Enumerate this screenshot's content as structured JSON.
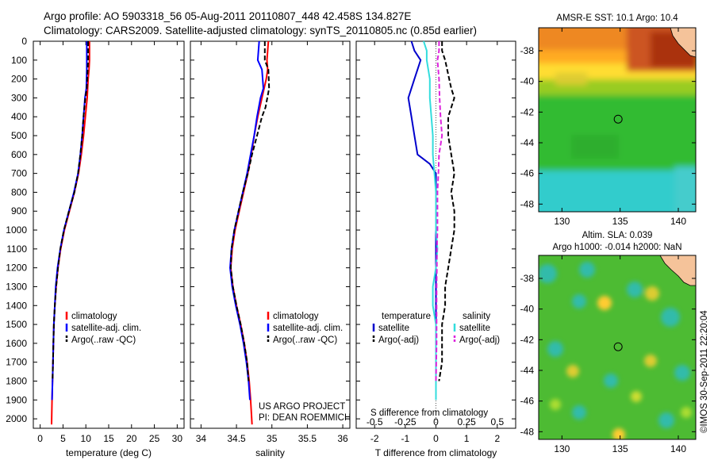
{
  "header": {
    "title_line1": "Argo profile: AO 5903318_56 05-Aug-2011 20110807_448 42.458S 134.827E",
    "title_line2": "Climatology: CARS2009. Satellite-adjusted climatology: synTS_20110805.nc (0.85d earlier)"
  },
  "watermark": "©IMOS 30-Sep-2011 22:20:04",
  "chart_data": [
    {
      "type": "line",
      "id": "temperature",
      "xlabel": "temperature (deg C)",
      "ylabel": "",
      "xlim": [
        -1.5,
        31.5
      ],
      "ylim": [
        2050,
        0
      ],
      "xticks": [
        0,
        5,
        10,
        15,
        20,
        25,
        30
      ],
      "yticks": [
        0,
        100,
        200,
        300,
        400,
        500,
        600,
        700,
        800,
        900,
        1000,
        1100,
        1200,
        1300,
        1400,
        1500,
        1600,
        1700,
        1800,
        1900,
        2000
      ],
      "legend": [
        "climatology",
        "satellite-adj. clim.",
        "Argo(..raw -QC)"
      ],
      "legend_position": "lower-right",
      "series": [
        {
          "name": "climatology",
          "color": "#ff0000",
          "dash": "solid",
          "x": [
            10.8,
            10.8,
            10.7,
            10.5,
            10.3,
            9.9,
            9.5,
            9.0,
            8.4,
            7.5,
            6.4,
            5.3,
            4.5,
            3.9,
            3.5,
            3.2,
            3.0,
            2.9,
            2.8,
            2.7,
            2.6,
            2.5
          ],
          "y": [
            0,
            100,
            150,
            200,
            300,
            400,
            500,
            600,
            700,
            800,
            900,
            1000,
            1100,
            1200,
            1300,
            1400,
            1500,
            1600,
            1700,
            1800,
            1900,
            2030
          ]
        },
        {
          "name": "satellite-adj. clim.",
          "color": "#0000ff",
          "dash": "solid",
          "x": [
            10.2,
            10.2,
            10.2,
            10.1,
            9.8,
            9.5,
            9.2,
            8.8,
            8.3,
            7.4,
            6.3,
            5.2,
            4.4,
            3.8,
            3.4,
            3.2,
            3.0,
            2.9,
            2.8,
            2.7,
            2.6
          ],
          "y": [
            0,
            100,
            150,
            250,
            300,
            400,
            500,
            600,
            700,
            800,
            900,
            1000,
            1100,
            1200,
            1300,
            1400,
            1500,
            1600,
            1700,
            1800,
            1900
          ]
        },
        {
          "name": "Argo(..raw -QC)",
          "color": "#000000",
          "dash": "dashed",
          "x": [
            10.5,
            10.5,
            10.4,
            10.2,
            9.9,
            9.5,
            9.2,
            8.8,
            8.3,
            7.5,
            6.3,
            5.2,
            4.4,
            3.9,
            3.5,
            3.2,
            3.0,
            2.9,
            2.8,
            2.7
          ],
          "y": [
            0,
            100,
            150,
            250,
            300,
            400,
            500,
            600,
            700,
            800,
            900,
            1000,
            1100,
            1200,
            1300,
            1400,
            1500,
            1600,
            1700,
            1800
          ]
        }
      ]
    },
    {
      "type": "line",
      "id": "salinity",
      "xlabel": "salinity",
      "ylabel": "",
      "xlim": [
        33.85,
        36.1
      ],
      "ylim": [
        2050,
        0
      ],
      "xticks": [
        34,
        34.5,
        35,
        35.5,
        36
      ],
      "legend": [
        "climatology",
        "satellite-adj. clim.",
        "Argo(..raw -QC)"
      ],
      "legend_position": "lower-right",
      "annotation": [
        "US ARGO PROJECT",
        "PI: DEAN ROEMMICH"
      ],
      "series": [
        {
          "name": "climatology",
          "color": "#ff0000",
          "dash": "solid",
          "x": [
            34.95,
            34.93,
            34.94,
            34.92,
            34.86,
            34.8,
            34.75,
            34.71,
            34.66,
            34.6,
            34.54,
            34.48,
            34.44,
            34.42,
            34.45,
            34.5,
            34.56,
            34.61,
            34.65,
            34.68,
            34.7,
            34.72
          ],
          "y": [
            0,
            100,
            150,
            200,
            300,
            400,
            500,
            600,
            700,
            800,
            900,
            1000,
            1100,
            1200,
            1300,
            1400,
            1500,
            1600,
            1700,
            1800,
            1900,
            2030
          ]
        },
        {
          "name": "satellite-adj. clim.",
          "color": "#0000ff",
          "dash": "solid",
          "x": [
            34.82,
            34.8,
            34.86,
            34.88,
            34.84,
            34.79,
            34.75,
            34.7,
            34.65,
            34.59,
            34.53,
            34.47,
            34.43,
            34.41,
            34.44,
            34.49,
            34.55,
            34.6,
            34.64,
            34.67,
            34.69
          ],
          "y": [
            0,
            100,
            150,
            250,
            300,
            400,
            500,
            600,
            700,
            800,
            900,
            1000,
            1100,
            1200,
            1300,
            1400,
            1500,
            1600,
            1700,
            1800,
            1900
          ]
        },
        {
          "name": "Argo(..raw -QC)",
          "color": "#000000",
          "dash": "dashed",
          "x": [
            34.9,
            34.9,
            34.95,
            34.96,
            34.91,
            34.86,
            34.79,
            34.72,
            34.66,
            34.59,
            34.53,
            34.47,
            34.43,
            34.42,
            34.45,
            34.5,
            34.56,
            34.61,
            34.65,
            34.67
          ],
          "y": [
            0,
            100,
            150,
            250,
            350,
            400,
            500,
            600,
            700,
            800,
            900,
            1000,
            1100,
            1200,
            1300,
            1400,
            1500,
            1600,
            1700,
            1800
          ]
        }
      ]
    },
    {
      "type": "line",
      "id": "difference",
      "xlabel": "T difference from climatology",
      "xlabel_top": "S difference from climatology",
      "ylabel": "",
      "xlim": [
        -2.6,
        2.6
      ],
      "ylim": [
        2050,
        0
      ],
      "xticks": [
        -2,
        -1,
        0,
        1,
        2
      ],
      "xticks_top": [
        -0.5,
        -0.25,
        0,
        0.25,
        0.5
      ],
      "legend_temperature_heading": "temperature",
      "legend_salinity_heading": "salinity",
      "legend_position": "lower-center",
      "series": [
        {
          "name": "satellite",
          "group": "temperature",
          "color": "#0000cc",
          "dash": "solid",
          "x": [
            -0.8,
            -0.7,
            -0.5,
            -0.7,
            -0.9,
            -0.8,
            -0.7,
            -0.6,
            -0.2,
            0.0,
            0.0,
            0.0,
            0.0,
            0.0,
            0.0,
            0.0,
            0.0,
            0.0,
            0.0,
            0.0
          ],
          "y": [
            0,
            50,
            100,
            200,
            300,
            400,
            500,
            600,
            650,
            700,
            800,
            900,
            1000,
            1100,
            1200,
            1300,
            1400,
            1500,
            1600,
            1800
          ]
        },
        {
          "name": "Argo(-adj)",
          "group": "temperature",
          "color": "#000000",
          "dash": "dashed",
          "x": [
            0.2,
            0.2,
            0.3,
            0.5,
            0.6,
            0.4,
            0.4,
            0.5,
            0.6,
            0.5,
            0.6,
            0.6,
            0.5,
            0.4,
            0.3,
            0.3,
            0.2,
            0.2,
            0.2,
            0.1
          ],
          "y": [
            0,
            50,
            100,
            250,
            300,
            400,
            500,
            600,
            700,
            800,
            900,
            1000,
            1100,
            1200,
            1300,
            1400,
            1500,
            1600,
            1700,
            1800
          ]
        },
        {
          "name": "satellite",
          "group": "salinity",
          "color": "#33dddd",
          "dash": "solid",
          "x": [
            -0.4,
            -0.3,
            -0.3,
            -0.2,
            -0.2,
            -0.15,
            -0.1,
            -0.1,
            -0.05,
            0.0,
            0.0,
            0.0,
            0.05,
            0.0,
            -0.1,
            -0.1,
            0.0,
            0.0,
            0.0,
            0.0,
            0.0
          ],
          "y": [
            0,
            50,
            100,
            200,
            300,
            400,
            500,
            600,
            700,
            800,
            900,
            1000,
            1100,
            1200,
            1300,
            1400,
            1500,
            1600,
            1700,
            1800,
            1900
          ]
        },
        {
          "name": "Argo(-adj)",
          "group": "salinity",
          "color": "#dd22dd",
          "dash": "dashed",
          "x": [
            0.1,
            0.1,
            0.05,
            0.1,
            0.12,
            0.15,
            0.2,
            0.1,
            0.08,
            0.05,
            0.05,
            0.05,
            0.03,
            0.03,
            0.02,
            0.02,
            0.02,
            0.02,
            0.0
          ],
          "y": [
            0,
            50,
            100,
            200,
            300,
            400,
            500,
            600,
            700,
            800,
            900,
            1000,
            1100,
            1200,
            1300,
            1400,
            1500,
            1600,
            1800
          ]
        }
      ]
    },
    {
      "type": "heatmap",
      "id": "sst-map",
      "title": "AMSR-E SST: 10.1  Argo: 10.4",
      "xlim": [
        128,
        141.5
      ],
      "ylim": [
        -48.5,
        -36.5
      ],
      "xticks": [
        130,
        135,
        140
      ],
      "yticks": [
        -38,
        -40,
        -42,
        -44,
        -46,
        -48
      ],
      "marker": {
        "lon": 134.83,
        "lat": -42.46
      },
      "colors": {
        "warm": "#d2691e",
        "mid": "#ffdd33",
        "cool": "#33bb33",
        "cold": "#33cccc",
        "land": "#f5c39a"
      }
    },
    {
      "type": "heatmap",
      "id": "sla-map",
      "title_line1": "Altim. SLA: 0.039",
      "title_line2": "Argo h1000: -0.014 h2000: NaN",
      "xlim": [
        128,
        141.5
      ],
      "ylim": [
        -48.5,
        -36.5
      ],
      "xticks": [
        130,
        135,
        140
      ],
      "yticks": [
        -38,
        -40,
        -42,
        -44,
        -46,
        -48
      ],
      "marker": {
        "lon": 134.83,
        "lat": -42.46
      },
      "colors": {
        "background": "#4dbb33",
        "high": "#ffcc33",
        "low": "#33bbaa",
        "land": "#f5c39a"
      }
    }
  ]
}
